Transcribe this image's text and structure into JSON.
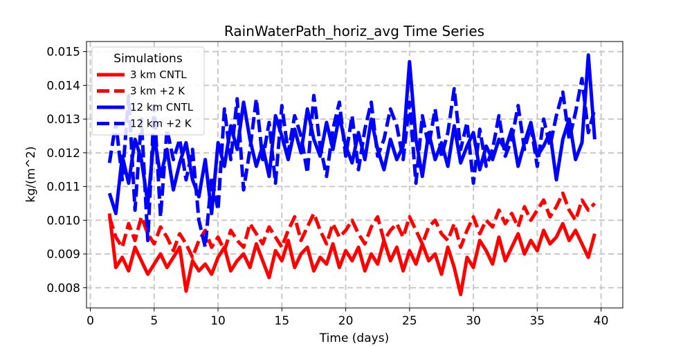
{
  "chart_data": {
    "type": "line",
    "title": "RainWaterPath_horiz_avg Time Series",
    "xlabel": "Time (days)",
    "ylabel": "kg/(m^2)",
    "xlim": [
      -0.3,
      41.7
    ],
    "ylim": [
      0.0074,
      0.0153
    ],
    "xticks": [
      0,
      5,
      10,
      15,
      20,
      25,
      30,
      35,
      40
    ],
    "xtick_labels": [
      "0",
      "5",
      "10",
      "15",
      "20",
      "25",
      "30",
      "35",
      "40"
    ],
    "yticks": [
      0.008,
      0.009,
      0.01,
      0.011,
      0.012,
      0.013,
      0.014,
      0.015
    ],
    "ytick_labels": [
      "0.008",
      "0.009",
      "0.010",
      "0.011",
      "0.012",
      "0.013",
      "0.014",
      "0.015"
    ],
    "grid": true,
    "legend": {
      "title": "Simulations",
      "placement": "upper-left"
    },
    "series": [
      {
        "name": "3 km CNTL",
        "color": "#ff0000",
        "style": "solid",
        "x": [
          1.5,
          2.0,
          2.5,
          3.0,
          3.5,
          4.0,
          4.5,
          5.0,
          5.5,
          6.0,
          6.5,
          7.0,
          7.5,
          8.0,
          8.5,
          9.0,
          9.5,
          10.0,
          10.5,
          11.0,
          11.5,
          12.0,
          12.5,
          13.0,
          13.5,
          14.0,
          14.5,
          15.0,
          15.5,
          16.0,
          16.5,
          17.0,
          17.5,
          18.0,
          18.5,
          19.0,
          19.5,
          20.0,
          20.5,
          21.0,
          21.5,
          22.0,
          22.5,
          23.0,
          23.5,
          24.0,
          24.5,
          25.0,
          25.5,
          26.0,
          26.5,
          27.0,
          27.5,
          28.0,
          28.5,
          29.0,
          29.5,
          30.0,
          30.5,
          31.0,
          31.5,
          32.0,
          32.5,
          33.0,
          33.5,
          34.0,
          34.5,
          35.0,
          35.5,
          36.0,
          36.5,
          37.0,
          37.5,
          38.0,
          38.5,
          39.0,
          39.5
        ],
        "values": [
          0.0102,
          0.0086,
          0.0089,
          0.0085,
          0.0092,
          0.0088,
          0.0084,
          0.0087,
          0.009,
          0.0086,
          0.0089,
          0.0092,
          0.0079,
          0.0088,
          0.0085,
          0.0087,
          0.0084,
          0.0089,
          0.0092,
          0.0085,
          0.0088,
          0.009,
          0.0086,
          0.0093,
          0.0088,
          0.0083,
          0.0091,
          0.0088,
          0.0094,
          0.0086,
          0.009,
          0.0092,
          0.0085,
          0.0089,
          0.0087,
          0.0093,
          0.0086,
          0.0091,
          0.0088,
          0.0092,
          0.0085,
          0.009,
          0.0087,
          0.0094,
          0.0088,
          0.0092,
          0.0085,
          0.0091,
          0.0087,
          0.0093,
          0.0088,
          0.009,
          0.0084,
          0.0092,
          0.0086,
          0.0078,
          0.0089,
          0.0086,
          0.0094,
          0.0091,
          0.0087,
          0.0095,
          0.0088,
          0.0092,
          0.0096,
          0.009,
          0.0094,
          0.0091,
          0.0097,
          0.0093,
          0.0095,
          0.0099,
          0.0094,
          0.0097,
          0.0093,
          0.0089,
          0.0096
        ]
      },
      {
        "name": "3 km +2 K",
        "color": "#ff0000",
        "style": "dashed",
        "x": [
          1.5,
          2.0,
          2.5,
          3.0,
          3.5,
          4.0,
          4.5,
          5.0,
          5.5,
          6.0,
          6.5,
          7.0,
          7.5,
          8.0,
          8.5,
          9.0,
          9.5,
          10.0,
          10.5,
          11.0,
          11.5,
          12.0,
          12.5,
          13.0,
          13.5,
          14.0,
          14.5,
          15.0,
          15.5,
          16.0,
          16.5,
          17.0,
          17.5,
          18.0,
          18.5,
          19.0,
          19.5,
          20.0,
          20.5,
          21.0,
          21.5,
          22.0,
          22.5,
          23.0,
          23.5,
          24.0,
          24.5,
          25.0,
          25.5,
          26.0,
          26.5,
          27.0,
          27.5,
          28.0,
          28.5,
          29.0,
          29.5,
          30.0,
          30.5,
          31.0,
          31.5,
          32.0,
          32.5,
          33.0,
          33.5,
          34.0,
          34.5,
          35.0,
          35.5,
          36.0,
          36.5,
          37.0,
          37.5,
          38.0,
          38.5,
          39.0,
          39.5
        ],
        "values": [
          0.0101,
          0.0095,
          0.0092,
          0.0099,
          0.0094,
          0.0101,
          0.0096,
          0.0093,
          0.0098,
          0.0095,
          0.0091,
          0.0096,
          0.0093,
          0.0089,
          0.0094,
          0.0097,
          0.0092,
          0.0095,
          0.0091,
          0.0097,
          0.0094,
          0.0092,
          0.0099,
          0.0096,
          0.0093,
          0.0098,
          0.0095,
          0.0092,
          0.0097,
          0.0101,
          0.0094,
          0.0098,
          0.0102,
          0.0097,
          0.0093,
          0.0099,
          0.0095,
          0.0097,
          0.01,
          0.0096,
          0.0093,
          0.0098,
          0.0101,
          0.0094,
          0.0097,
          0.0099,
          0.0095,
          0.0101,
          0.0097,
          0.0093,
          0.0098,
          0.01,
          0.0096,
          0.0094,
          0.0099,
          0.0092,
          0.0097,
          0.0101,
          0.0096,
          0.01,
          0.0098,
          0.0103,
          0.0099,
          0.0102,
          0.0098,
          0.0104,
          0.01,
          0.0103,
          0.0106,
          0.0101,
          0.0104,
          0.0108,
          0.0103,
          0.01,
          0.0106,
          0.0103,
          0.0105
        ]
      },
      {
        "name": "12 km CNTL",
        "color": "#0000ff",
        "style": "solid",
        "x": [
          1.5,
          2.0,
          2.5,
          3.0,
          3.5,
          4.0,
          4.5,
          5.0,
          5.5,
          6.0,
          6.5,
          7.0,
          7.5,
          8.0,
          8.5,
          9.0,
          9.5,
          10.0,
          10.5,
          11.0,
          11.5,
          12.0,
          12.5,
          13.0,
          13.5,
          14.0,
          14.5,
          15.0,
          15.5,
          16.0,
          16.5,
          17.0,
          17.5,
          18.0,
          18.5,
          19.0,
          19.5,
          20.0,
          20.5,
          21.0,
          21.5,
          22.0,
          22.5,
          23.0,
          23.5,
          24.0,
          24.5,
          25.0,
          25.5,
          26.0,
          26.5,
          27.0,
          27.5,
          28.0,
          28.5,
          29.0,
          29.5,
          30.0,
          30.5,
          31.0,
          31.5,
          32.0,
          32.5,
          33.0,
          33.5,
          34.0,
          34.5,
          35.0,
          35.5,
          36.0,
          36.5,
          37.0,
          37.5,
          38.0,
          38.5,
          39.0,
          39.5
        ],
        "values": [
          0.0108,
          0.0102,
          0.0119,
          0.0111,
          0.0124,
          0.0118,
          0.0105,
          0.0125,
          0.0113,
          0.0121,
          0.0109,
          0.0117,
          0.0123,
          0.0112,
          0.0107,
          0.0118,
          0.0102,
          0.0123,
          0.0116,
          0.0128,
          0.0121,
          0.0135,
          0.0124,
          0.0116,
          0.0122,
          0.0113,
          0.0131,
          0.0125,
          0.0118,
          0.0127,
          0.012,
          0.0133,
          0.0124,
          0.0119,
          0.0129,
          0.0121,
          0.0131,
          0.0122,
          0.0117,
          0.0126,
          0.0118,
          0.013,
          0.0121,
          0.0115,
          0.0124,
          0.0118,
          0.0122,
          0.0147,
          0.0124,
          0.0113,
          0.0126,
          0.0118,
          0.0123,
          0.0116,
          0.0128,
          0.0117,
          0.0122,
          0.0126,
          0.0115,
          0.0122,
          0.0118,
          0.0124,
          0.0121,
          0.0127,
          0.0116,
          0.0123,
          0.0129,
          0.0119,
          0.0122,
          0.0126,
          0.0112,
          0.0124,
          0.013,
          0.0118,
          0.0123,
          0.0149,
          0.0124
        ]
      },
      {
        "name": "12 km +2 K",
        "color": "#0000ff",
        "style": "dashed",
        "x": [
          1.5,
          2.0,
          2.5,
          3.0,
          3.5,
          4.0,
          4.5,
          5.0,
          5.5,
          6.0,
          6.5,
          7.0,
          7.5,
          8.0,
          8.5,
          9.0,
          9.5,
          10.0,
          10.5,
          11.0,
          11.5,
          12.0,
          12.5,
          13.0,
          13.5,
          14.0,
          14.5,
          15.0,
          15.5,
          16.0,
          16.5,
          17.0,
          17.5,
          18.0,
          18.5,
          19.0,
          19.5,
          20.0,
          20.5,
          21.0,
          21.5,
          22.0,
          22.5,
          23.0,
          23.5,
          24.0,
          24.5,
          25.0,
          25.5,
          26.0,
          26.5,
          27.0,
          27.5,
          28.0,
          28.5,
          29.0,
          29.5,
          30.0,
          30.5,
          31.0,
          31.5,
          32.0,
          32.5,
          33.0,
          33.5,
          34.0,
          34.5,
          35.0,
          35.5,
          36.0,
          36.5,
          37.0,
          37.5,
          38.0,
          38.5,
          39.0,
          39.5
        ],
        "values": [
          0.0117,
          0.0129,
          0.0112,
          0.0137,
          0.0103,
          0.013,
          0.0094,
          0.0134,
          0.0101,
          0.0127,
          0.0118,
          0.0124,
          0.0112,
          0.0121,
          0.01,
          0.0092,
          0.0113,
          0.0103,
          0.0133,
          0.0118,
          0.0136,
          0.0109,
          0.0121,
          0.0136,
          0.0118,
          0.0129,
          0.0111,
          0.0134,
          0.012,
          0.0131,
          0.0125,
          0.0114,
          0.0137,
          0.0122,
          0.0113,
          0.0127,
          0.0135,
          0.0119,
          0.0131,
          0.0115,
          0.0127,
          0.0135,
          0.0119,
          0.0124,
          0.0133,
          0.0128,
          0.0118,
          0.0135,
          0.0111,
          0.0131,
          0.0122,
          0.0133,
          0.0119,
          0.0126,
          0.0139,
          0.0121,
          0.0129,
          0.0111,
          0.0127,
          0.0116,
          0.0121,
          0.0131,
          0.0119,
          0.0124,
          0.0134,
          0.0121,
          0.0128,
          0.0116,
          0.013,
          0.0122,
          0.0131,
          0.0138,
          0.0124,
          0.0132,
          0.0142,
          0.0126,
          0.0133
        ]
      }
    ]
  }
}
